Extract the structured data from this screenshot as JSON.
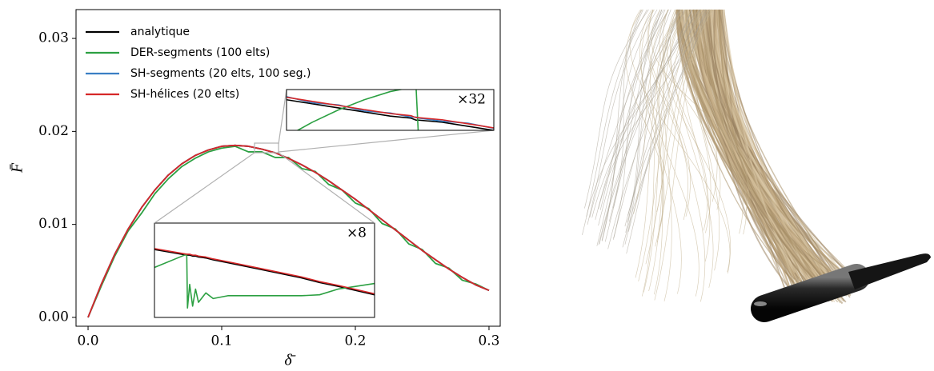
{
  "chart_data": [
    {
      "type": "line",
      "x_label": "δ̄",
      "y_label": "F̄",
      "x": [
        0,
        0.01,
        0.02,
        0.03,
        0.04,
        0.05,
        0.06,
        0.07,
        0.08,
        0.09,
        0.1,
        0.11,
        0.12,
        0.13,
        0.14,
        0.15,
        0.16,
        0.17,
        0.18,
        0.19,
        0.2,
        0.21,
        0.22,
        0.23,
        0.24,
        0.25,
        0.26,
        0.27,
        0.28,
        0.29,
        0.3
      ],
      "series": [
        {
          "name": "analytique",
          "color": "#000000",
          "values": [
            0,
            0.0036,
            0.0068,
            0.0095,
            0.0118,
            0.0137,
            0.0153,
            0.0165,
            0.0174,
            0.018,
            0.0184,
            0.0185,
            0.0184,
            0.0181,
            0.0177,
            0.0171,
            0.0164,
            0.0156,
            0.0147,
            0.0137,
            0.0127,
            0.0116,
            0.0105,
            0.0094,
            0.0083,
            0.0072,
            0.0062,
            0.0052,
            0.0043,
            0.0035,
            0.0029
          ]
        },
        {
          "name": "DER-segments (100 elts)",
          "color": "#2ca042",
          "values": [
            0,
            0.0034,
            0.0066,
            0.0093,
            0.0112,
            0.0133,
            0.0149,
            0.0162,
            0.0171,
            0.0178,
            0.0182,
            0.0184,
            0.0178,
            0.0178,
            0.0172,
            0.0172,
            0.016,
            0.0157,
            0.0143,
            0.0137,
            0.0123,
            0.0117,
            0.0101,
            0.0095,
            0.0079,
            0.0073,
            0.0058,
            0.0053,
            0.004,
            0.0036,
            0.0029
          ]
        },
        {
          "name": "SH-segments (20 elts, 100 seg.)",
          "color": "#3a7fc4",
          "values": [
            0,
            0.0036,
            0.0068,
            0.0095,
            0.0118,
            0.0137,
            0.0153,
            0.0165,
            0.0174,
            0.018,
            0.0184,
            0.0185,
            0.0184,
            0.0181,
            0.0177,
            0.0171,
            0.0164,
            0.0156,
            0.0147,
            0.0137,
            0.0127,
            0.0116,
            0.0105,
            0.0094,
            0.0083,
            0.0072,
            0.0062,
            0.0052,
            0.0043,
            0.0035,
            0.0029
          ]
        },
        {
          "name": "SH-hélices (20 elts)",
          "color": "#d62728",
          "values": [
            0,
            0.0036,
            0.0068,
            0.0095,
            0.0118,
            0.0137,
            0.0153,
            0.0165,
            0.0174,
            0.018,
            0.0184,
            0.0185,
            0.0184,
            0.0181,
            0.0177,
            0.0171,
            0.0164,
            0.0156,
            0.0147,
            0.0137,
            0.0127,
            0.0116,
            0.0105,
            0.0094,
            0.0083,
            0.0072,
            0.0062,
            0.0052,
            0.0043,
            0.0035,
            0.0029
          ]
        }
      ],
      "xlim": [
        -0.009,
        0.3084
      ],
      "ylim": [
        -0.00095,
        0.0331
      ],
      "xticks": [
        {
          "value": 0,
          "label": "0.0"
        },
        0.1,
        0.2,
        0.3
      ],
      "yticks": [
        {
          "value": 0,
          "label": "0.00"
        },
        {
          "value": 0.01,
          "label": "0.01"
        },
        {
          "value": 0.02,
          "label": "0.02"
        },
        {
          "value": 0.03,
          "label": "0.03"
        }
      ],
      "legend": "upper left"
    },
    {
      "type": "line",
      "annotation": "×32",
      "x": [
        0.128,
        0.129,
        0.13,
        0.131,
        0.132,
        0.1328,
        0.133,
        0.1331,
        0.134,
        0.135,
        0.136
      ],
      "series": [
        {
          "name": "analytique",
          "color": "#000000",
          "values": [
            0.0181,
            0.01808,
            0.01806,
            0.01804,
            0.01802,
            0.01801,
            0.018,
            0.018,
            0.01799,
            0.01797,
            0.01795
          ]
        },
        {
          "name": "DER-segments (100 elts)",
          "color": "#2ca042",
          "values": [
            0.01792,
            0.01799,
            0.01805,
            0.0181,
            0.01814,
            0.01816,
            0.01816,
            0.0179,
            null,
            null,
            null
          ]
        },
        {
          "name": "SH-segments (20 elts, 100 seg.)",
          "color": "#3a7fc4",
          "values": [
            0.018115,
            0.018085,
            0.018075,
            0.018045,
            0.018035,
            0.018015,
            0.018015,
            0.01801,
            0.017995,
            0.017985,
            0.01796
          ]
        },
        {
          "name": "SH-hélices (20 elts)",
          "color": "#d62728",
          "values": [
            0.018112,
            0.018092,
            0.018072,
            0.018052,
            0.018032,
            0.018022,
            0.018012,
            0.018012,
            0.018002,
            0.017982,
            0.017962
          ]
        }
      ],
      "xlim": [
        0.128,
        0.136
      ],
      "ylim": [
        0.01795,
        0.01815
      ]
    },
    {
      "type": "line",
      "annotation": "×8",
      "x": [
        0.12,
        0.1244,
        0.1245,
        0.1248,
        0.1252,
        0.1256,
        0.126,
        0.127,
        0.128,
        0.13,
        0.135,
        0.14,
        0.1425,
        0.145,
        0.15
      ],
      "series": [
        {
          "name": "analytique",
          "color": "#000000",
          "values": [
            0.01832,
            0.01826,
            0.01826,
            0.01826,
            0.01825,
            0.01825,
            0.01824,
            0.01823,
            0.01821,
            0.01818,
            0.0181,
            0.01802,
            0.01797,
            0.01793,
            0.01784
          ]
        },
        {
          "name": "DER-segments (100 elts)",
          "color": "#2ca042",
          "values": [
            0.01813,
            0.01827,
            0.0177,
            0.01795,
            0.01772,
            0.0179,
            0.01776,
            0.01786,
            0.0178,
            0.01783,
            0.01783,
            0.01783,
            0.01784,
            0.0179,
            0.01796
          ]
        },
        {
          "name": "SH-hélices (20 elts)",
          "color": "#d62728",
          "values": [
            0.01833,
            0.01827,
            0.01827,
            0.01827,
            0.01826,
            0.01826,
            0.01825,
            0.01824,
            0.01822,
            0.01819,
            0.01811,
            0.01803,
            0.01798,
            0.01794,
            0.01785
          ]
        }
      ],
      "xlim": [
        0.12,
        0.15
      ],
      "ylim": [
        0.0176,
        0.0186
      ]
    }
  ]
}
